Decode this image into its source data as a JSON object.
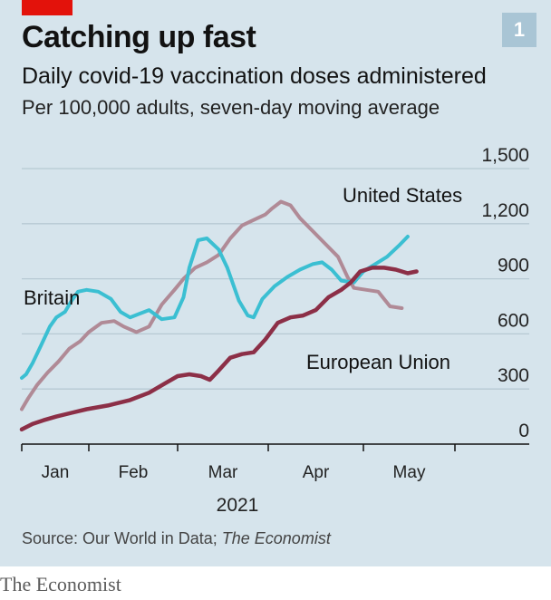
{
  "header": {
    "badge": "1",
    "title": "Catching up fast",
    "subtitle": "Daily covid-19 vaccination doses administered",
    "description": "Per 100,000 adults, seven-day moving average"
  },
  "source": {
    "prefix": "Source: Our World in Data; ",
    "italic": "The Economist"
  },
  "footer": {
    "brand": "The Economist"
  },
  "colors": {
    "panel": "#d6e4ec",
    "accent_red": "#e3120b",
    "britain": "#3bbfd2",
    "united_states": "#b08a96",
    "european_union": "#8c2f47"
  },
  "chart_data": {
    "type": "line",
    "title": "Daily covid-19 vaccination doses administered",
    "subtitle": "Per 100,000 adults, seven-day moving average",
    "x_axis": {
      "tick_labels": [
        "Jan",
        "Feb",
        "Mar",
        "Apr",
        "May"
      ],
      "year_label": "2021",
      "range": [
        "2021-01-01",
        "2021-05-20"
      ]
    },
    "y_axis": {
      "ylim": [
        0,
        1500
      ],
      "ticks": [
        0,
        300,
        600,
        900,
        1200,
        1500
      ],
      "tick_labels": [
        "0",
        "300",
        "600",
        "900",
        "1,200",
        "1,500"
      ],
      "position": "right"
    },
    "grid": true,
    "series": [
      {
        "name": "Britain",
        "color": "#3bbfd2",
        "points": [
          [
            "2021-01-01",
            360
          ],
          [
            "2021-01-03",
            380
          ],
          [
            "2021-01-06",
            440
          ],
          [
            "2021-01-10",
            540
          ],
          [
            "2021-01-14",
            640
          ],
          [
            "2021-01-17",
            690
          ],
          [
            "2021-01-21",
            720
          ],
          [
            "2021-01-24",
            780
          ],
          [
            "2021-01-27",
            830
          ],
          [
            "2021-01-31",
            840
          ],
          [
            "2021-02-04",
            830
          ],
          [
            "2021-02-08",
            790
          ],
          [
            "2021-02-11",
            720
          ],
          [
            "2021-02-14",
            690
          ],
          [
            "2021-02-17",
            710
          ],
          [
            "2021-02-20",
            730
          ],
          [
            "2021-02-24",
            680
          ],
          [
            "2021-02-28",
            690
          ],
          [
            "2021-03-03",
            800
          ],
          [
            "2021-03-05",
            960
          ],
          [
            "2021-03-08",
            1110
          ],
          [
            "2021-03-11",
            1120
          ],
          [
            "2021-03-15",
            1060
          ],
          [
            "2021-03-18",
            960
          ],
          [
            "2021-03-22",
            780
          ],
          [
            "2021-03-25",
            700
          ],
          [
            "2021-03-27",
            690
          ],
          [
            "2021-03-30",
            790
          ],
          [
            "2021-04-03",
            860
          ],
          [
            "2021-04-07",
            910
          ],
          [
            "2021-04-11",
            950
          ],
          [
            "2021-04-15",
            980
          ],
          [
            "2021-04-18",
            990
          ],
          [
            "2021-04-21",
            950
          ],
          [
            "2021-04-24",
            890
          ],
          [
            "2021-04-28",
            880
          ],
          [
            "2021-05-01",
            940
          ],
          [
            "2021-05-05",
            980
          ],
          [
            "2021-05-09",
            1020
          ],
          [
            "2021-05-13",
            1080
          ],
          [
            "2021-05-16",
            1130
          ]
        ]
      },
      {
        "name": "United States",
        "color": "#b08a96",
        "points": [
          [
            "2021-01-01",
            190
          ],
          [
            "2021-01-04",
            250
          ],
          [
            "2021-01-08",
            320
          ],
          [
            "2021-01-13",
            390
          ],
          [
            "2021-01-18",
            450
          ],
          [
            "2021-01-23",
            520
          ],
          [
            "2021-01-28",
            560
          ],
          [
            "2021-02-01",
            610
          ],
          [
            "2021-02-05",
            660
          ],
          [
            "2021-02-09",
            670
          ],
          [
            "2021-02-12",
            640
          ],
          [
            "2021-02-16",
            610
          ],
          [
            "2021-02-20",
            640
          ],
          [
            "2021-02-24",
            760
          ],
          [
            "2021-02-28",
            840
          ],
          [
            "2021-03-03",
            900
          ],
          [
            "2021-03-07",
            960
          ],
          [
            "2021-03-11",
            990
          ],
          [
            "2021-03-15",
            1030
          ],
          [
            "2021-03-19",
            1120
          ],
          [
            "2021-03-23",
            1190
          ],
          [
            "2021-03-27",
            1220
          ],
          [
            "2021-03-31",
            1250
          ],
          [
            "2021-04-02",
            1280
          ],
          [
            "2021-04-05",
            1320
          ],
          [
            "2021-04-08",
            1300
          ],
          [
            "2021-04-11",
            1230
          ],
          [
            "2021-04-15",
            1160
          ],
          [
            "2021-04-19",
            1090
          ],
          [
            "2021-04-23",
            1020
          ],
          [
            "2021-04-26",
            910
          ],
          [
            "2021-04-28",
            850
          ],
          [
            "2021-05-02",
            840
          ],
          [
            "2021-05-06",
            830
          ],
          [
            "2021-05-10",
            750
          ],
          [
            "2021-05-14",
            740
          ]
        ]
      },
      {
        "name": "European Union",
        "color": "#8c2f47",
        "points": [
          [
            "2021-01-01",
            80
          ],
          [
            "2021-01-06",
            110
          ],
          [
            "2021-01-11",
            130
          ],
          [
            "2021-01-17",
            150
          ],
          [
            "2021-01-24",
            170
          ],
          [
            "2021-01-31",
            190
          ],
          [
            "2021-02-07",
            210
          ],
          [
            "2021-02-14",
            240
          ],
          [
            "2021-02-20",
            280
          ],
          [
            "2021-02-25",
            330
          ],
          [
            "2021-03-01",
            370
          ],
          [
            "2021-03-05",
            380
          ],
          [
            "2021-03-09",
            370
          ],
          [
            "2021-03-12",
            350
          ],
          [
            "2021-03-15",
            400
          ],
          [
            "2021-03-19",
            470
          ],
          [
            "2021-03-23",
            490
          ],
          [
            "2021-03-27",
            500
          ],
          [
            "2021-03-31",
            570
          ],
          [
            "2021-04-04",
            660
          ],
          [
            "2021-04-08",
            690
          ],
          [
            "2021-04-12",
            700
          ],
          [
            "2021-04-16",
            730
          ],
          [
            "2021-04-20",
            800
          ],
          [
            "2021-04-24",
            840
          ],
          [
            "2021-04-27",
            880
          ],
          [
            "2021-04-30",
            940
          ],
          [
            "2021-05-04",
            960
          ],
          [
            "2021-05-08",
            960
          ],
          [
            "2021-05-12",
            950
          ],
          [
            "2021-05-16",
            930
          ],
          [
            "2021-05-19",
            940
          ]
        ]
      }
    ]
  }
}
